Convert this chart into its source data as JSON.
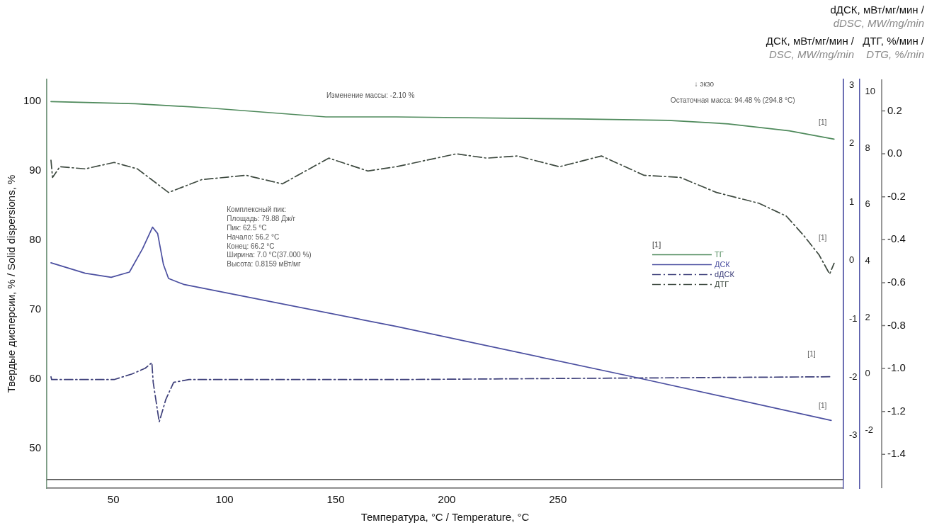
{
  "chart_data": [
    {
      "type": "line",
      "xlabel": "Температура, °C / Temperature, °C",
      "ylabel": "Твердые дисперсии, % / Solid dispersions, %",
      "y2label": "ДСК, мВт/мг/мин / DSC, MW/mg/min",
      "y3label": "dДСК, мВт/мг/мин / dDSC, MW/mg/min",
      "xlim": [
        20,
        378.5
      ],
      "xticks": [
        50,
        100,
        150,
        200,
        250
      ],
      "ylim": [
        44.3,
        103.1
      ],
      "yticks": [
        50,
        60,
        70,
        80,
        90,
        100
      ],
      "y2lim": [
        -3.9,
        3.1
      ],
      "y2ticks": [
        -3,
        -2,
        -1,
        0,
        1,
        2,
        3
      ],
      "y3lim": [
        -4.05,
        10.44
      ],
      "y3ticks": [
        -2,
        0,
        2,
        4,
        6,
        8,
        10
      ],
      "grid": false,
      "marker": "none",
      "legend": "right",
      "legend_title": "[1]",
      "series": [
        {
          "name": "ТГ",
          "color": "#4f8a5c",
          "line_style": "solid",
          "x": [
            21.9,
            59.8,
            92.4,
            145.6,
            177.2,
            258.8,
            299.6,
            326.7,
            354.1,
            374.3
          ],
          "values": [
            99.9,
            99.6,
            99.0,
            97.7,
            97.7,
            97.4,
            97.2,
            96.7,
            95.7,
            94.5
          ]
        },
        {
          "name": "ДСК",
          "color": "#4b4fa0",
          "line_style": "solid",
          "axis": "y2",
          "x": [
            21.9,
            37.3,
            49.0,
            57.2,
            63.1,
            67.6,
            69.9,
            72.5,
            74.8,
            81.6,
            177.2,
            285.9,
            373.0
          ],
          "values": [
            -0.04,
            -0.22,
            -0.29,
            -0.2,
            0.2,
            0.57,
            0.46,
            -0.07,
            -0.31,
            -0.41,
            -1.13,
            -2.01,
            -2.74
          ]
        },
        {
          "name": "dДСК",
          "color": "#3d3f7a",
          "line_style": "dashed",
          "axis": "y3",
          "x": [
            21.9,
            22.2,
            50.3,
            58.4,
            64.3,
            67.3,
            67.9,
            70.6,
            73.6,
            77.1,
            84.0,
            177.2,
            373.0
          ],
          "values": [
            -0.1,
            -0.2,
            -0.2,
            0.0,
            0.2,
            0.4,
            -0.3,
            -1.7,
            -0.9,
            -0.3,
            -0.2,
            -0.2,
            -0.1
          ]
        }
      ],
      "annotations": [
        "Изменение массы: -2.10 %",
        "Остаточная масса: 94.48 % (294.8 °C)",
        "↓ экзо",
        "Комплексный пик:",
        "Площадь: 79.88 Дж/г",
        "Пик: 62.5 °C",
        "Начало: 56.2 °C",
        "Конец: 66.2 °C",
        "Ширина: 7.0 °C(37.000 %)",
        "Высота: 0.8159 мВт/мг",
        "[1]",
        "[1]",
        "[1]",
        "[1]"
      ]
    },
    {
      "type": "line",
      "ylabel": "ДТГ, %/мин / DTG, %/min",
      "xlim": [
        20,
        378.5
      ],
      "ylim": [
        -1.518,
        0.347
      ],
      "yticks": [
        -1.4,
        -1.2,
        {
          "value": -1.0,
          "label": "-1.0"
        },
        -0.8,
        -0.6,
        -0.4,
        -0.2,
        {
          "value": 0,
          "label": "0.0"
        },
        0.2
      ],
      "tick_labels": "y",
      "grid": false,
      "marker": "none",
      "series": [
        {
          "name": "ДТГ",
          "color": "#3e4a40",
          "line_style": "dashed",
          "x": [
            21.9,
            22.6,
            25.9,
            37.3,
            50.3,
            60.8,
            74.8,
            89.8,
            109.7,
            126.0,
            146.9,
            164.5,
            177.2,
            204.3,
            218.0,
            231.7,
            250.7,
            269.6,
            288.8,
            305.1,
            321.4,
            340.4,
            352.8,
            360.6,
            367.5,
            372.3,
            374.3
          ],
          "values": [
            -0.03,
            -0.11,
            -0.06,
            -0.07,
            -0.04,
            -0.07,
            -0.18,
            -0.12,
            -0.1,
            -0.14,
            -0.02,
            -0.08,
            -0.06,
            0.0,
            -0.02,
            -0.01,
            -0.06,
            -0.01,
            -0.1,
            -0.11,
            -0.18,
            -0.23,
            -0.29,
            -0.38,
            -0.47,
            -0.56,
            -0.51
          ]
        }
      ]
    }
  ]
}
